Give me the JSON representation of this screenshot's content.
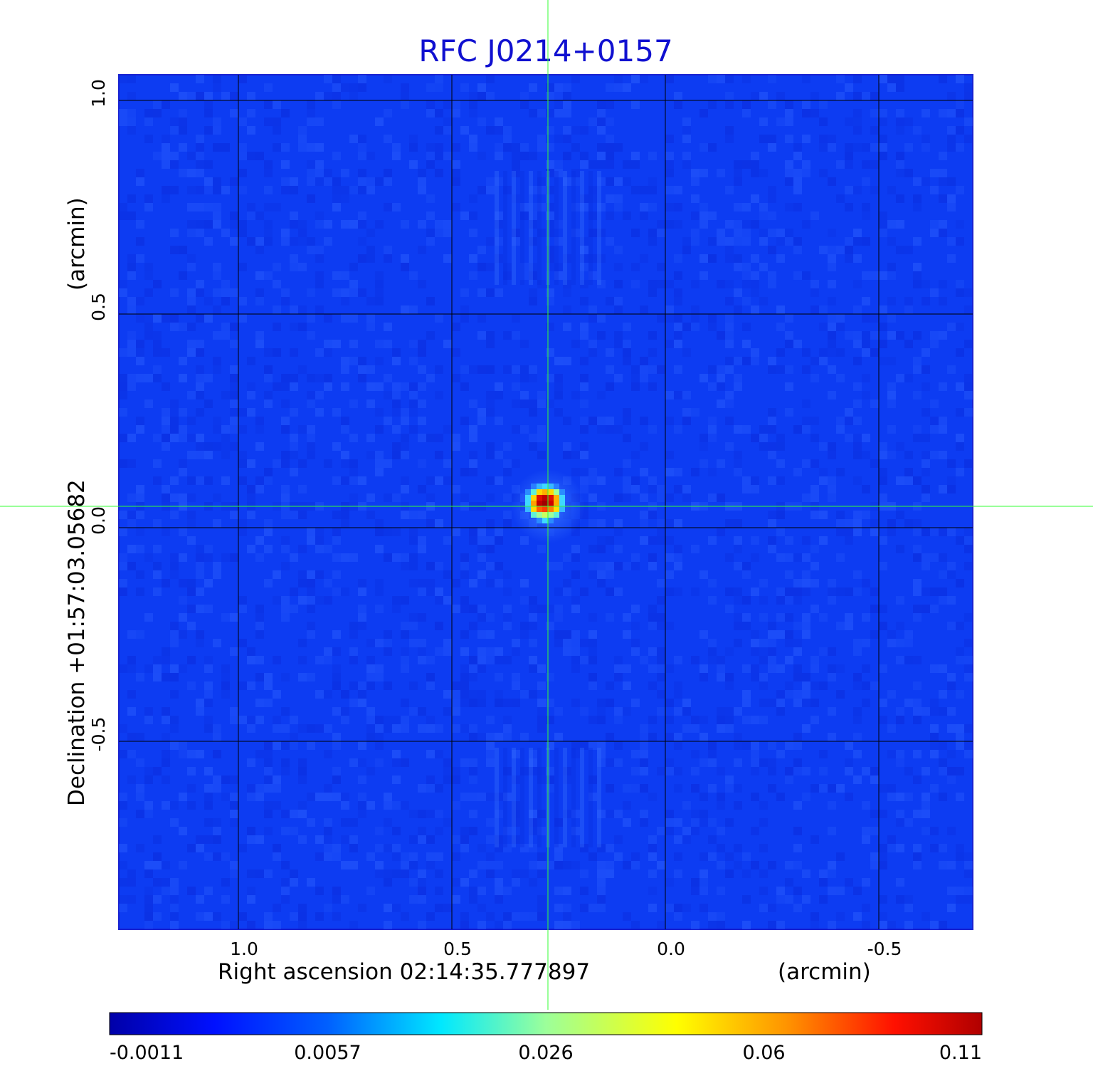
{
  "chart_data": {
    "type": "heatmap",
    "title": "RFC J0214+0157",
    "xlabel": "Right ascension  02:14:35.777897",
    "xunit": "(arcmin)",
    "ylabel": "Declination  +01:57:03.05682",
    "yunit": "(arcmin)",
    "xlim": [
      1.28,
      -0.72
    ],
    "ylim": [
      -0.94,
      1.06
    ],
    "x_ticks": [
      {
        "value": 1.0,
        "label": "1.0"
      },
      {
        "value": 0.5,
        "label": "0.5"
      },
      {
        "value": 0.0,
        "label": "0.0"
      },
      {
        "value": -0.5,
        "label": "-0.5"
      }
    ],
    "y_ticks": [
      {
        "value": 1.0,
        "label": "1.0"
      },
      {
        "value": 0.5,
        "label": "0.5"
      },
      {
        "value": 0.0,
        "label": "0.0"
      },
      {
        "value": -0.5,
        "label": "-0.5"
      }
    ],
    "grid": true,
    "crosshair": {
      "x": 0.275,
      "y": 0.05
    },
    "source_peak": {
      "x": 0.275,
      "y": 0.05,
      "value": 0.11
    },
    "colormap": "jet",
    "colorbar": {
      "labels": [
        "-0.0011",
        "0.0057",
        "0.026",
        "0.06",
        "0.11"
      ],
      "min": -0.0011,
      "max": 0.11
    },
    "colors": {
      "background_map": "#0d3cf2",
      "grid": "#000000",
      "crosshair": "#33ff33",
      "title": "#1010d0"
    }
  }
}
